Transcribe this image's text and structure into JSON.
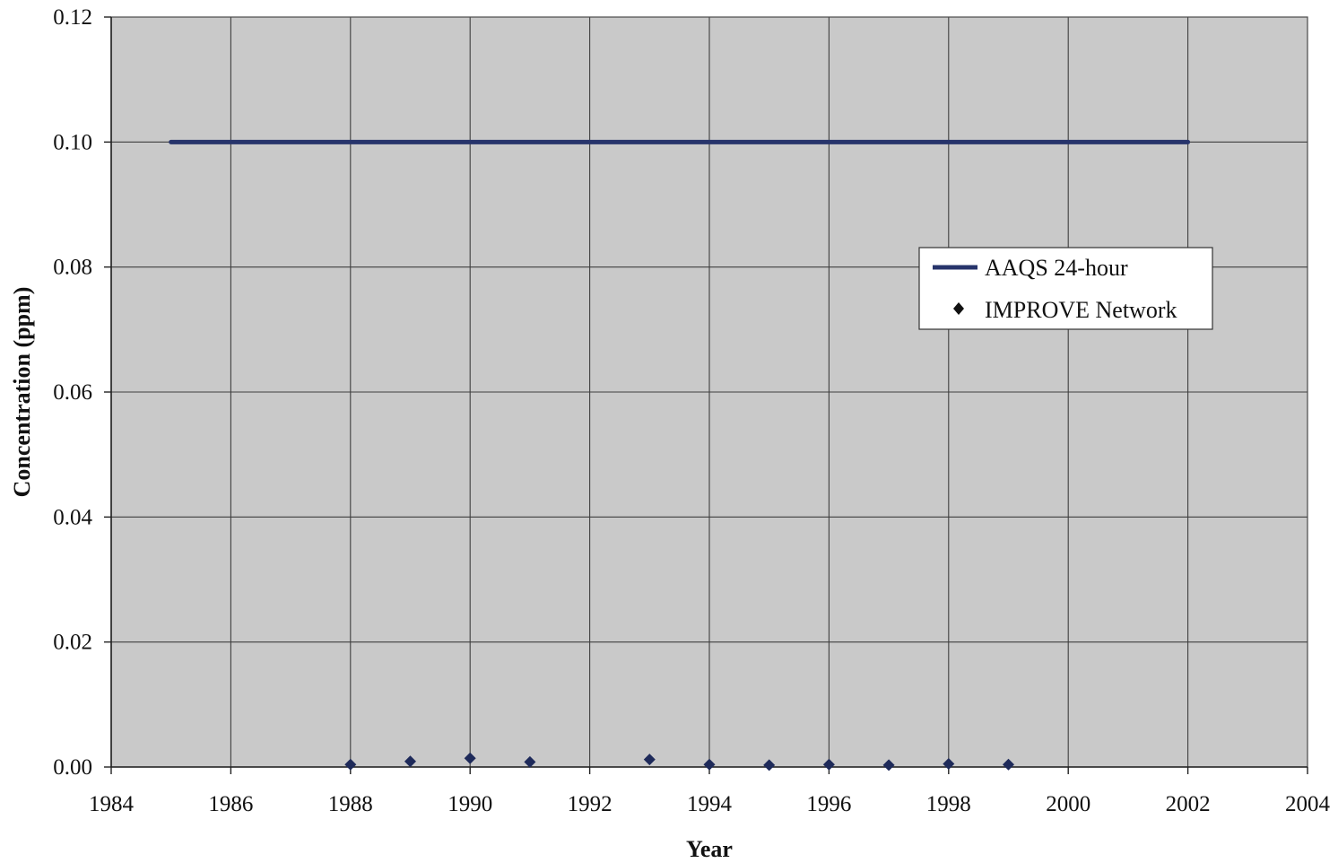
{
  "chart_data": {
    "type": "scatter",
    "xlabel": "Year",
    "ylabel": "Concentration (ppm)",
    "xlim": [
      1984,
      2004
    ],
    "ylim": [
      0,
      0.12
    ],
    "x_ticks": [
      1984,
      1986,
      1988,
      1990,
      1992,
      1994,
      1996,
      1998,
      2000,
      2002,
      2004
    ],
    "x_tick_labels": [
      "1984",
      "1986",
      "1988",
      "1990",
      "1992",
      "1994",
      "1996",
      "1998",
      "2000",
      "2002",
      "2004"
    ],
    "y_ticks": [
      0,
      0.02,
      0.04,
      0.06,
      0.08,
      0.1,
      0.12
    ],
    "y_tick_labels": [
      "0.00",
      "0.02",
      "0.04",
      "0.06",
      "0.08",
      "0.10",
      "0.12"
    ],
    "grid": true,
    "legend_position": "right",
    "plot_background": "#c9c9c9",
    "series": [
      {
        "name": "AAQS 24-hour",
        "style": "line",
        "color": "#27346b",
        "x": [
          1985,
          2002
        ],
        "y": [
          0.1,
          0.1
        ]
      },
      {
        "name": "IMPROVE Network",
        "style": "diamond-markers",
        "color": "#1e2a5a",
        "x": [
          1988,
          1989,
          1990,
          1991,
          1993,
          1994,
          1995,
          1996,
          1997,
          1998,
          1999
        ],
        "y": [
          0.0004,
          0.0009,
          0.0014,
          0.0008,
          0.0012,
          0.0004,
          0.0003,
          0.0004,
          0.0003,
          0.0005,
          0.0004
        ]
      }
    ]
  }
}
